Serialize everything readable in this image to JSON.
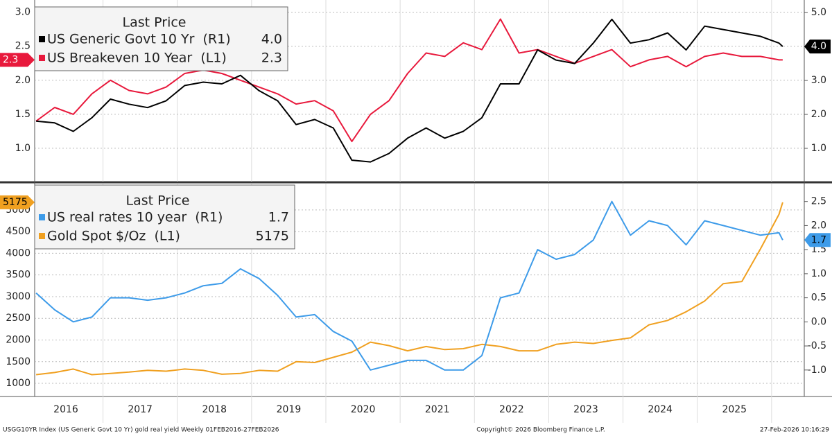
{
  "chart_data": [
    {
      "type": "line",
      "legend_title": "Last Price",
      "x": [
        2016.1,
        2016.35,
        2016.6,
        2016.85,
        2017.1,
        2017.35,
        2017.6,
        2017.85,
        2018.1,
        2018.35,
        2018.6,
        2018.85,
        2019.1,
        2019.35,
        2019.6,
        2019.85,
        2020.1,
        2020.35,
        2020.6,
        2020.85,
        2021.1,
        2021.35,
        2021.6,
        2021.85,
        2022.1,
        2022.35,
        2022.6,
        2022.85,
        2023.1,
        2023.35,
        2023.6,
        2023.85,
        2024.1,
        2024.35,
        2024.6,
        2024.85,
        2025.1,
        2025.35,
        2025.6,
        2025.85,
        2026.1,
        2026.15
      ],
      "xlim": [
        2016.08,
        2026.44
      ],
      "ylim": [
        0.51,
        3.18
      ],
      "yticks": [
        {
          "value": 1.0,
          "label": "1.0"
        },
        {
          "value": 1.5,
          "label": "1.5"
        },
        {
          "value": 2.0,
          "label": "2.0"
        },
        {
          "value": 2.5,
          "label": "2.5"
        },
        {
          "value": 3.0,
          "label": "3.0"
        }
      ],
      "y2lim": [
        0.02,
        5.37
      ],
      "y2ticks": [
        {
          "value": 1.0,
          "label": "1.0"
        },
        {
          "value": 2.0,
          "label": "2.0"
        },
        {
          "value": 3.0,
          "label": "3.0"
        },
        {
          "value": 4.0,
          "label": "4.0"
        },
        {
          "value": 5.0,
          "label": "5.0"
        }
      ],
      "grid": true,
      "series": [
        {
          "name": "US Generic Govt 10 Yr  (R1)",
          "last_price": "4.0",
          "color": "#000000",
          "axis": "y2",
          "values": [
            1.8,
            1.75,
            1.5,
            1.9,
            2.45,
            2.3,
            2.2,
            2.4,
            2.85,
            2.95,
            2.9,
            3.15,
            2.7,
            2.4,
            1.7,
            1.85,
            1.6,
            0.65,
            0.6,
            0.85,
            1.3,
            1.6,
            1.3,
            1.5,
            1.9,
            2.9,
            2.9,
            3.9,
            3.6,
            3.5,
            4.1,
            4.8,
            4.1,
            4.2,
            4.4,
            3.9,
            4.6,
            4.5,
            4.4,
            4.3,
            4.1,
            4.0
          ]
        },
        {
          "name": "US Breakeven 10 Year  (L1)",
          "last_price": "2.3",
          "color": "#e8193c",
          "axis": "y",
          "values": [
            1.4,
            1.6,
            1.5,
            1.8,
            2.0,
            1.85,
            1.8,
            1.9,
            2.1,
            2.15,
            2.1,
            2.0,
            1.9,
            1.8,
            1.65,
            1.7,
            1.55,
            1.1,
            1.5,
            1.7,
            2.1,
            2.4,
            2.35,
            2.55,
            2.45,
            2.9,
            2.4,
            2.45,
            2.35,
            2.25,
            2.35,
            2.45,
            2.2,
            2.3,
            2.35,
            2.2,
            2.35,
            2.4,
            2.35,
            2.35,
            2.3,
            2.3
          ]
        }
      ]
    },
    {
      "type": "line",
      "legend_title": "Last Price",
      "x": [
        2016.1,
        2016.35,
        2016.6,
        2016.85,
        2017.1,
        2017.35,
        2017.6,
        2017.85,
        2018.1,
        2018.35,
        2018.6,
        2018.85,
        2019.1,
        2019.35,
        2019.6,
        2019.85,
        2020.1,
        2020.35,
        2020.6,
        2020.85,
        2021.1,
        2021.35,
        2021.6,
        2021.85,
        2022.1,
        2022.35,
        2022.6,
        2022.85,
        2023.1,
        2023.35,
        2023.6,
        2023.85,
        2024.1,
        2024.35,
        2024.6,
        2024.85,
        2025.1,
        2025.35,
        2025.6,
        2025.85,
        2026.1,
        2026.15
      ],
      "xlim": [
        2016.08,
        2026.44
      ],
      "xticks": [
        {
          "value": 2016.5,
          "label": "2016"
        },
        {
          "value": 2017.5,
          "label": "2017"
        },
        {
          "value": 2018.5,
          "label": "2018"
        },
        {
          "value": 2019.5,
          "label": "2019"
        },
        {
          "value": 2020.5,
          "label": "2020"
        },
        {
          "value": 2021.5,
          "label": "2021"
        },
        {
          "value": 2022.5,
          "label": "2022"
        },
        {
          "value": 2023.5,
          "label": "2023"
        },
        {
          "value": 2024.5,
          "label": "2024"
        },
        {
          "value": 2025.5,
          "label": "2025"
        }
      ],
      "ylim": [
        697,
        5605
      ],
      "yticks": [
        1000,
        1500,
        2000,
        2500,
        3000,
        3500,
        4000,
        4500,
        5000
      ],
      "y2lim": [
        -1.55,
        2.87
      ],
      "y2ticks": [
        {
          "value": -1.0,
          "label": "-1.0"
        },
        {
          "value": -0.5,
          "label": "-0.5"
        },
        {
          "value": 0.0,
          "label": "0.0"
        },
        {
          "value": 0.5,
          "label": "0.5"
        },
        {
          "value": 1.0,
          "label": "1.0"
        },
        {
          "value": 1.5,
          "label": "1.5"
        },
        {
          "value": 2.0,
          "label": "2.0"
        },
        {
          "value": 2.5,
          "label": "2.5"
        }
      ],
      "grid": true,
      "series": [
        {
          "name": "US real rates 10 year  (R1)",
          "last_price": "1.7",
          "color": "#3d9be9",
          "axis": "y2",
          "values": [
            0.6,
            0.25,
            0.0,
            0.1,
            0.5,
            0.5,
            0.45,
            0.5,
            0.6,
            0.75,
            0.8,
            1.1,
            0.9,
            0.55,
            0.1,
            0.15,
            -0.2,
            -0.4,
            -1.0,
            -0.9,
            -0.8,
            -0.8,
            -1.0,
            -1.0,
            -0.7,
            0.5,
            0.6,
            1.5,
            1.3,
            1.4,
            1.7,
            2.5,
            1.8,
            2.1,
            2.0,
            1.6,
            2.1,
            2.0,
            1.9,
            1.8,
            1.85,
            1.7
          ]
        },
        {
          "name": "Gold Spot $/Oz  (L1)",
          "last_price": "5175",
          "color": "#f0a020",
          "axis": "y",
          "values": [
            1200,
            1250,
            1330,
            1200,
            1230,
            1260,
            1300,
            1280,
            1330,
            1300,
            1210,
            1230,
            1300,
            1280,
            1500,
            1480,
            1600,
            1720,
            1950,
            1870,
            1750,
            1850,
            1780,
            1800,
            1900,
            1850,
            1750,
            1750,
            1900,
            1950,
            1920,
            1990,
            2050,
            2350,
            2450,
            2650,
            2900,
            3300,
            3350,
            4100,
            4900,
            5175
          ]
        }
      ]
    }
  ],
  "footer": {
    "left": "USGG10YR Index (US Generic Govt 10 Yr) gold real yield Weekly 01FEB2016-27FEB2026",
    "center": "Copyright© 2026 Bloomberg Finance L.P.",
    "right": "27-Feb-2026 10:16:29"
  }
}
